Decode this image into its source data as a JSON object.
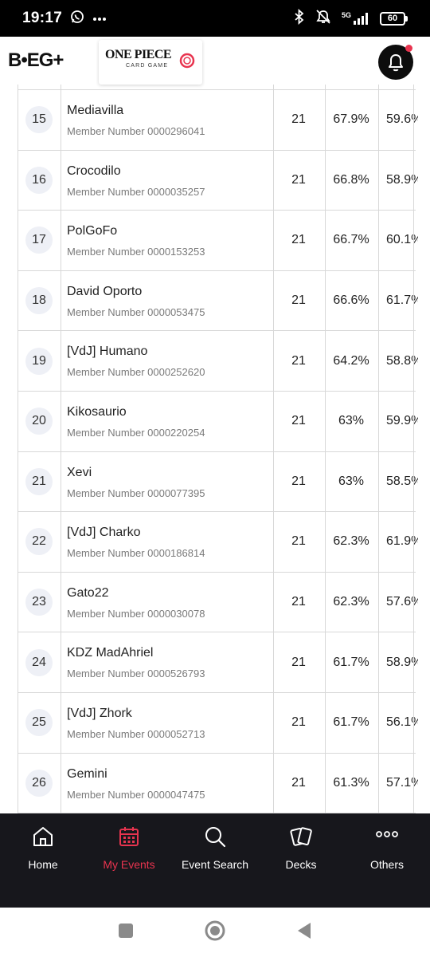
{
  "status_bar": {
    "time": "19:17",
    "network": "5G",
    "battery": "60",
    "icons": [
      "whatsapp-icon",
      "more-dots-icon",
      "bluetooth-icon",
      "alarm-off-icon",
      "signal-icon",
      "battery-icon"
    ]
  },
  "header": {
    "brand_logo": "B•EG+",
    "event_logo_title": "ONE PIECE",
    "event_logo_subtitle": "CARD GAME",
    "has_notification": true
  },
  "standings": {
    "member_prefix": "Member Number",
    "rows": [
      {
        "rank": "15",
        "name": "Mediavilla",
        "member": "0000296041",
        "points": "21",
        "omw": "67.9%",
        "gw": "59.6%"
      },
      {
        "rank": "16",
        "name": "Crocodilo",
        "member": "0000035257",
        "points": "21",
        "omw": "66.8%",
        "gw": "58.9%"
      },
      {
        "rank": "17",
        "name": "PolGoFo",
        "member": "0000153253",
        "points": "21",
        "omw": "66.7%",
        "gw": "60.1%"
      },
      {
        "rank": "18",
        "name": "David Oporto",
        "member": "0000053475",
        "points": "21",
        "omw": "66.6%",
        "gw": "61.7%"
      },
      {
        "rank": "19",
        "name": "[VdJ] Humano",
        "member": "0000252620",
        "points": "21",
        "omw": "64.2%",
        "gw": "58.8%"
      },
      {
        "rank": "20",
        "name": "Kikosaurio",
        "member": "0000220254",
        "points": "21",
        "omw": "63%",
        "gw": "59.9%"
      },
      {
        "rank": "21",
        "name": "Xevi",
        "member": "0000077395",
        "points": "21",
        "omw": "63%",
        "gw": "58.5%"
      },
      {
        "rank": "22",
        "name": "[VdJ] Charko",
        "member": "0000186814",
        "points": "21",
        "omw": "62.3%",
        "gw": "61.9%"
      },
      {
        "rank": "23",
        "name": "Gato22",
        "member": "0000030078",
        "points": "21",
        "omw": "62.3%",
        "gw": "57.6%"
      },
      {
        "rank": "24",
        "name": "KDZ MadAhriel",
        "member": "0000526793",
        "points": "21",
        "omw": "61.7%",
        "gw": "58.9%"
      },
      {
        "rank": "25",
        "name": "[VdJ] Zhork",
        "member": "0000052713",
        "points": "21",
        "omw": "61.7%",
        "gw": "56.1%"
      },
      {
        "rank": "26",
        "name": "Gemini",
        "member": "0000047475",
        "points": "21",
        "omw": "61.3%",
        "gw": "57.1%"
      }
    ]
  },
  "bottom_nav": {
    "active": "my-events",
    "items": [
      {
        "id": "home",
        "label": "Home",
        "icon": "home-icon"
      },
      {
        "id": "my-events",
        "label": "My Events",
        "icon": "calendar-icon"
      },
      {
        "id": "event-search",
        "label": "Event Search",
        "icon": "search-icon"
      },
      {
        "id": "decks",
        "label": "Decks",
        "icon": "cards-icon"
      },
      {
        "id": "others",
        "label": "Others",
        "icon": "more-dots-icon"
      }
    ]
  },
  "colors": {
    "accent": "#e8344f",
    "nav_background": "#17171c",
    "rank_badge": "#eef0f6"
  }
}
